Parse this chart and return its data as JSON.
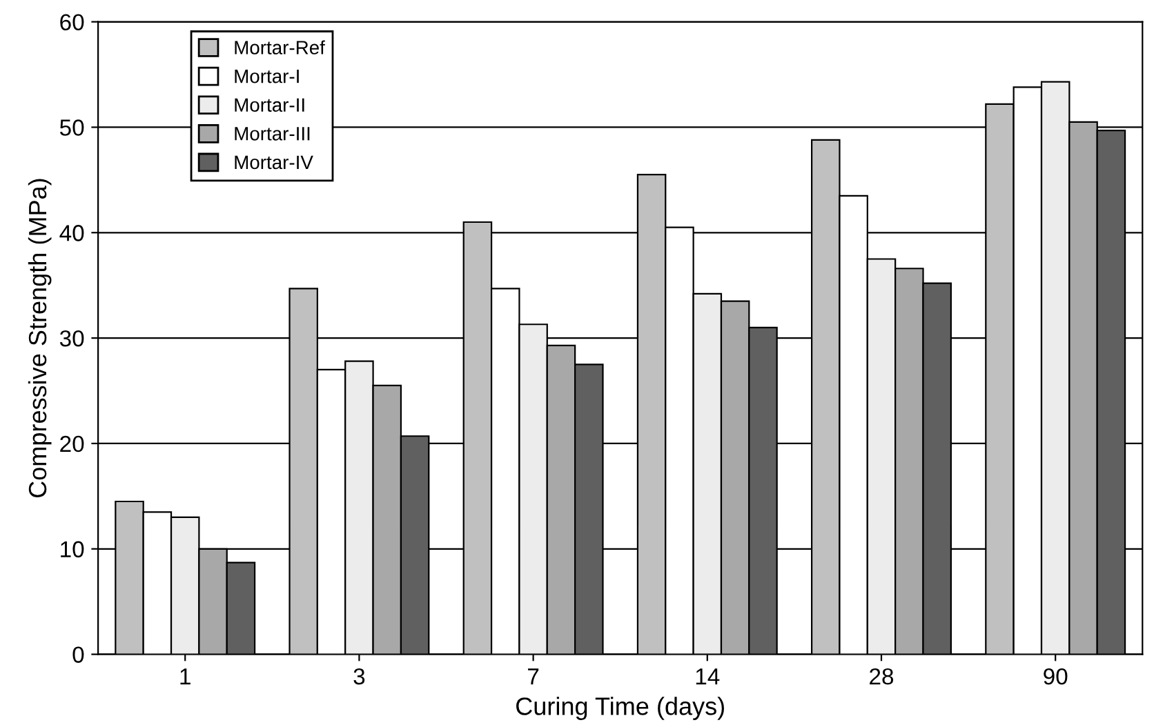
{
  "chart_data": {
    "type": "bar",
    "xlabel": "Curing Time (days)",
    "ylabel": "Compressive Strength (MPa)",
    "categories": [
      "1",
      "3",
      "7",
      "14",
      "28",
      "90"
    ],
    "series": [
      {
        "name": "Mortar-Ref",
        "color": "#c0c0c0",
        "values": [
          14.5,
          34.7,
          41,
          45.5,
          48.8,
          52.2
        ]
      },
      {
        "name": "Mortar-I",
        "color": "#ffffff",
        "values": [
          13.5,
          27,
          34.7,
          40.5,
          43.5,
          53.8
        ]
      },
      {
        "name": "Mortar-II",
        "color": "#ececec",
        "values": [
          13,
          27.8,
          31.3,
          34.2,
          37.5,
          54.3
        ]
      },
      {
        "name": "Mortar-III",
        "color": "#a8a8a8",
        "values": [
          10,
          25.5,
          29.3,
          33.5,
          36.6,
          50.5
        ]
      },
      {
        "name": "Mortar-IV",
        "color": "#606060",
        "values": [
          8.7,
          20.7,
          27.5,
          31,
          35.2,
          49.7
        ]
      }
    ],
    "ylim": [
      0,
      60
    ],
    "yticks": [
      0,
      10,
      20,
      30,
      40,
      50,
      60
    ],
    "grid": "y",
    "legend": "top left"
  }
}
